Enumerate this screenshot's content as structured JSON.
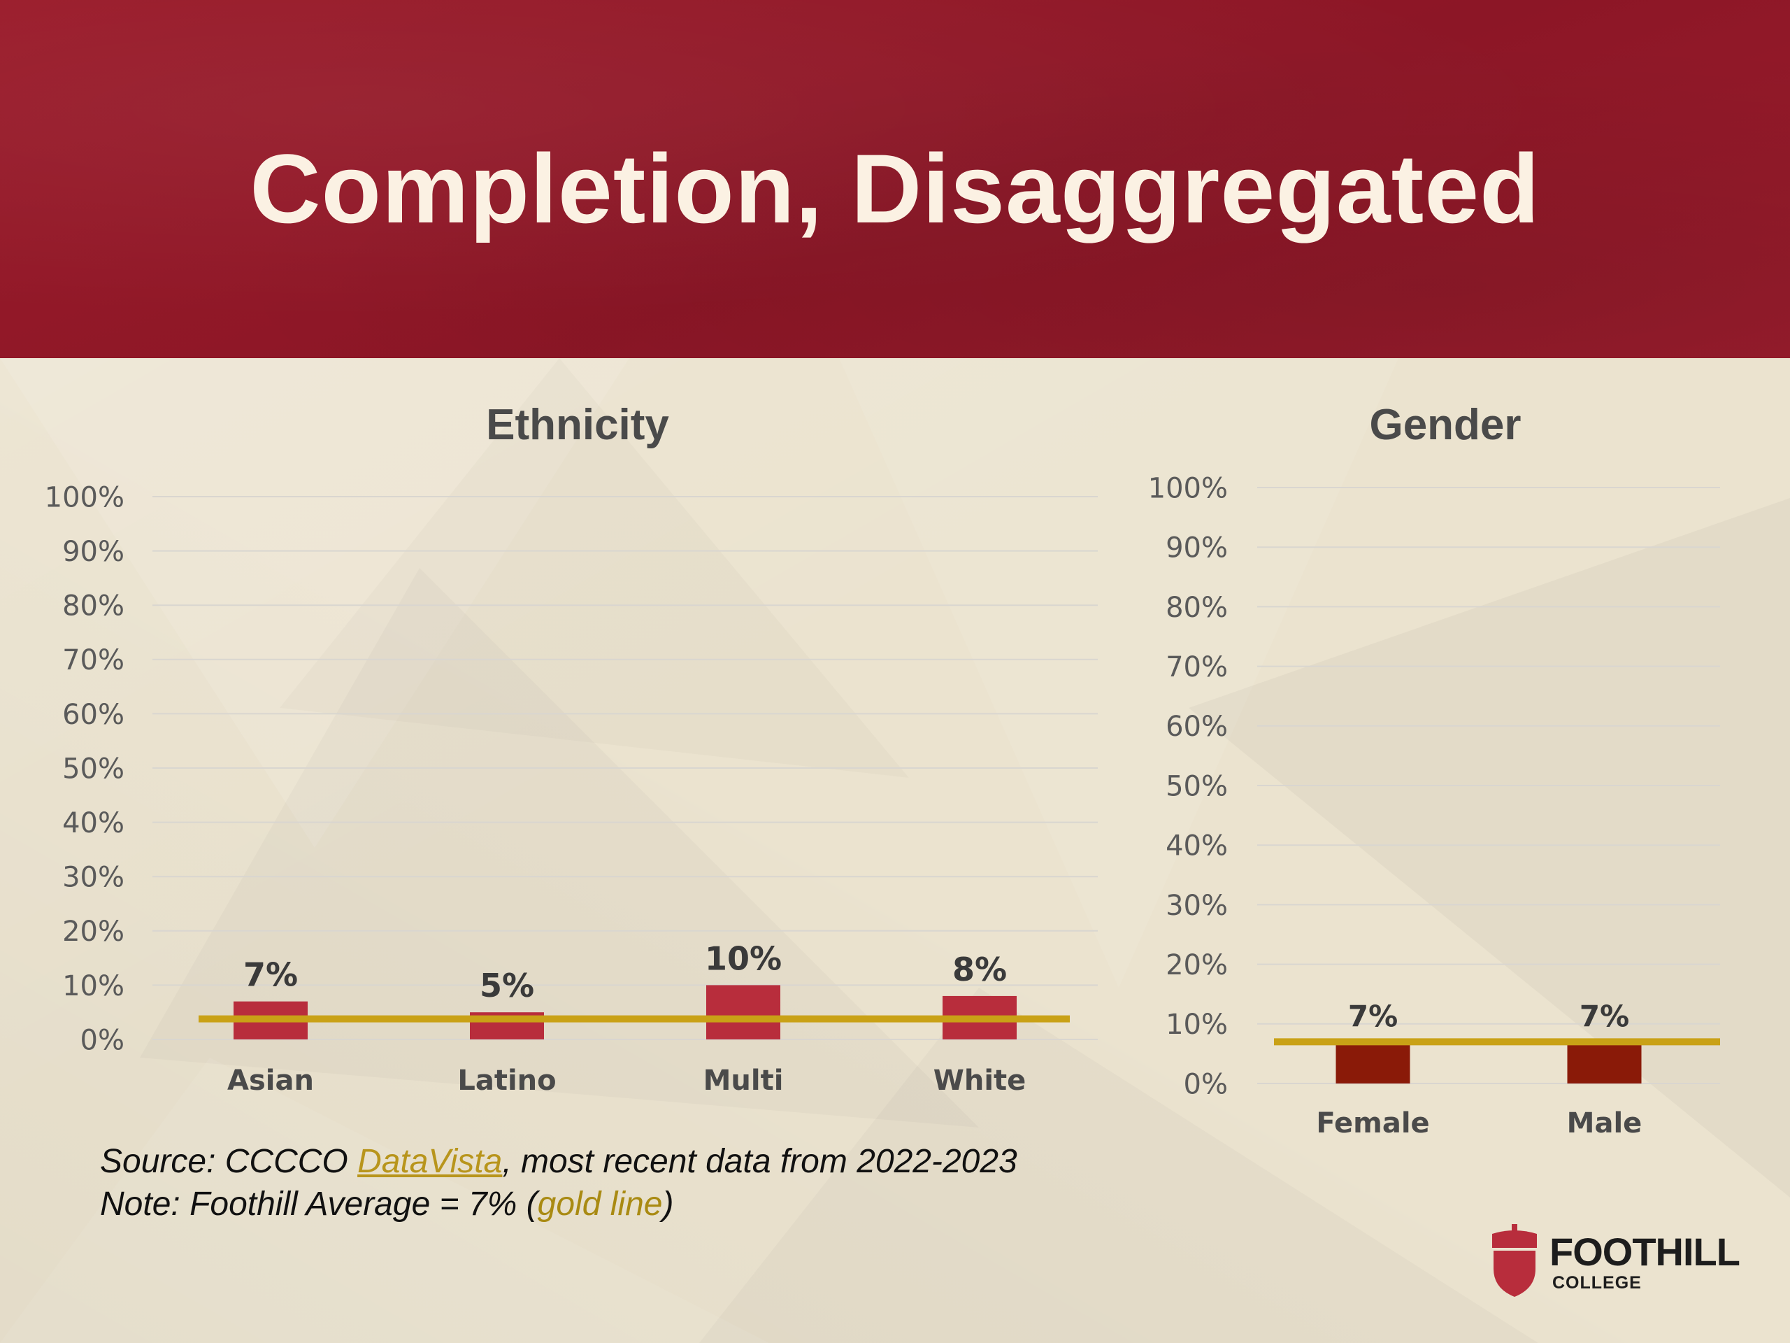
{
  "slide": {
    "title": "Completion, Disaggregated"
  },
  "colors": {
    "header_bg": "#8f1a29",
    "ethnicity_bar": "#b82d3c",
    "gender_bar": "#8a1a08",
    "average_line": "#c9a116",
    "background": "#ebe3cf"
  },
  "chart_data": [
    {
      "type": "bar",
      "title": "Ethnicity",
      "categories": [
        "Asian",
        "Latino",
        "Multi",
        "White"
      ],
      "values": [
        7,
        5,
        10,
        8
      ],
      "data_labels": [
        "7%",
        "5%",
        "10%",
        "8%"
      ],
      "ylim": [
        0,
        100
      ],
      "yticks": [
        "0%",
        "10%",
        "20%",
        "30%",
        "40%",
        "50%",
        "60%",
        "70%",
        "80%",
        "90%",
        "100%"
      ],
      "reference_line": 7,
      "grid": true,
      "legend": "none"
    },
    {
      "type": "bar",
      "title": "Gender",
      "categories": [
        "Female",
        "Male"
      ],
      "values": [
        7,
        7
      ],
      "data_labels": [
        "7%",
        "7%"
      ],
      "ylim": [
        0,
        100
      ],
      "yticks": [
        "0%",
        "10%",
        "20%",
        "30%",
        "40%",
        "50%",
        "60%",
        "70%",
        "80%",
        "90%",
        "100%"
      ],
      "reference_line": 7,
      "grid": true,
      "legend": "none"
    }
  ],
  "footnote": {
    "source_prefix": "Source: CCCCO ",
    "source_link": "DataVista",
    "source_suffix": ", most recent data from 2022-2023",
    "note_prefix": "Note: Foothill Average = 7% (",
    "note_gold": "gold line",
    "note_suffix": ")"
  },
  "logo": {
    "name": "FOOTHILL",
    "sub": "COLLEGE",
    "icon": "acorn-icon"
  }
}
